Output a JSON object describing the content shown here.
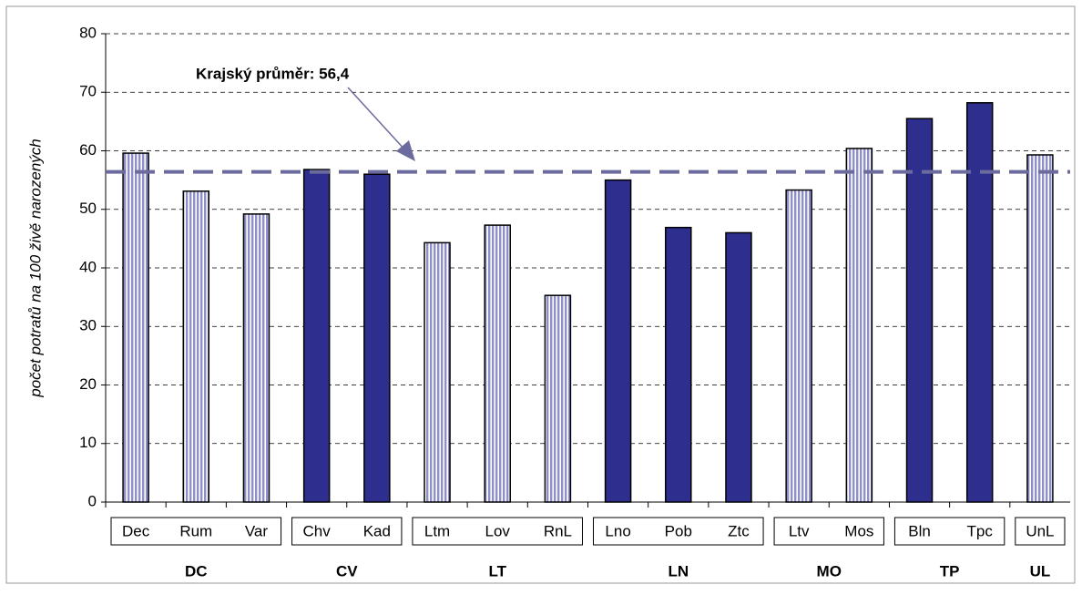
{
  "chart_data": {
    "type": "bar",
    "y_label": "počet potratů na 100 živě narozených",
    "ylim": [
      0,
      80
    ],
    "yticks": [
      0,
      10,
      20,
      30,
      40,
      50,
      60,
      70,
      80
    ],
    "grid": true,
    "average": 56.4,
    "average_label": "Krajský průměr: 56,4",
    "average_color": "#6b6b9e",
    "groups": [
      {
        "name": "DC",
        "categories": [
          "Dec",
          "Rum",
          "Var"
        ],
        "values": [
          59.6,
          53.1,
          49.2
        ],
        "color": "#b8b8de",
        "pattern": "stripes"
      },
      {
        "name": "CV",
        "categories": [
          "Chv",
          "Kad"
        ],
        "values": [
          56.8,
          56.0
        ],
        "color": "#2e2e8e"
      },
      {
        "name": "LT",
        "categories": [
          "Ltm",
          "Lov",
          "RnL"
        ],
        "values": [
          44.3,
          47.3,
          35.3
        ],
        "color": "#b8b8de",
        "pattern": "stripes"
      },
      {
        "name": "LN",
        "categories": [
          "Lno",
          "Pob",
          "Ztc"
        ],
        "values": [
          55.0,
          46.9,
          46.0
        ],
        "color": "#2e2e8e"
      },
      {
        "name": "MO",
        "categories": [
          "Ltv",
          "Mos"
        ],
        "values": [
          53.3,
          60.4
        ],
        "color": "#b8b8de",
        "pattern": "stripes"
      },
      {
        "name": "TP",
        "categories": [
          "Bln",
          "Tpc"
        ],
        "values": [
          65.5,
          68.2
        ],
        "color": "#2e2e8e"
      },
      {
        "name": "UL",
        "categories": [
          "UnL"
        ],
        "values": [
          59.3
        ],
        "color": "#b8b8de",
        "pattern": "stripes"
      }
    ]
  }
}
